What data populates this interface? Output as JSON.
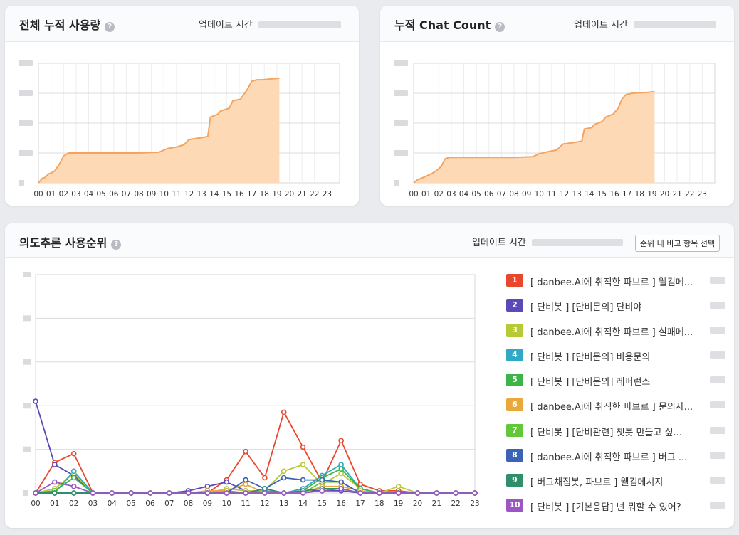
{
  "cards": {
    "total": {
      "title": "전체 누적 사용량",
      "update_label": "업데이트 시간"
    },
    "chat": {
      "title": "누적 Chat Count",
      "update_label": "업데이트 시간"
    },
    "intent": {
      "title": "의도추론 사용순위",
      "update_label": "업데이트 시간",
      "compare_button": "순위 내 비교 항목 선택"
    }
  },
  "chart_data": [
    {
      "type": "area",
      "color": "#f4a460",
      "fill": "#fdd9b5",
      "x": [
        "00",
        "01",
        "02",
        "03",
        "04",
        "05",
        "06",
        "07",
        "08",
        "09",
        "10",
        "11",
        "12",
        "13",
        "14",
        "15",
        "16",
        "17",
        "18",
        "19",
        "20",
        "21",
        "22",
        "23"
      ],
      "ylim": [
        0,
        8
      ],
      "series_points": [
        [
          0,
          0
        ],
        [
          0.3,
          0.3
        ],
        [
          0.5,
          0.35
        ],
        [
          0.8,
          0.6
        ],
        [
          1.0,
          0.65
        ],
        [
          1.3,
          0.8
        ],
        [
          1.7,
          1.3
        ],
        [
          2.0,
          1.8
        ],
        [
          2.4,
          2.0
        ],
        [
          5,
          2.0
        ],
        [
          8,
          2.0
        ],
        [
          9.6,
          2.05
        ],
        [
          10.3,
          2.3
        ],
        [
          11.0,
          2.4
        ],
        [
          11.6,
          2.55
        ],
        [
          12.0,
          2.9
        ],
        [
          12.8,
          3.0
        ],
        [
          13.5,
          3.1
        ],
        [
          13.7,
          4.4
        ],
        [
          14.3,
          4.6
        ],
        [
          14.5,
          4.8
        ],
        [
          15.2,
          5.0
        ],
        [
          15.5,
          5.5
        ],
        [
          16.1,
          5.6
        ],
        [
          16.6,
          6.2
        ],
        [
          16.8,
          6.5
        ],
        [
          17.0,
          6.8
        ],
        [
          17.4,
          6.9
        ],
        [
          17.8,
          6.9
        ],
        [
          18.5,
          6.95
        ],
        [
          19.2,
          7.0
        ]
      ]
    },
    {
      "type": "area",
      "color": "#f4a460",
      "fill": "#fdd9b5",
      "x": [
        "00",
        "01",
        "02",
        "03",
        "04",
        "05",
        "06",
        "07",
        "08",
        "09",
        "10",
        "11",
        "12",
        "13",
        "14",
        "15",
        "16",
        "17",
        "18",
        "19",
        "20",
        "21",
        "22",
        "23"
      ],
      "ylim": [
        0,
        8
      ],
      "series_points": [
        [
          0,
          0
        ],
        [
          0.3,
          0.2
        ],
        [
          0.6,
          0.3
        ],
        [
          1.0,
          0.45
        ],
        [
          1.4,
          0.6
        ],
        [
          1.8,
          0.8
        ],
        [
          2.2,
          1.1
        ],
        [
          2.5,
          1.6
        ],
        [
          2.8,
          1.7
        ],
        [
          5,
          1.7
        ],
        [
          8,
          1.7
        ],
        [
          9.5,
          1.75
        ],
        [
          10.0,
          1.95
        ],
        [
          10.8,
          2.1
        ],
        [
          11.4,
          2.2
        ],
        [
          11.9,
          2.6
        ],
        [
          12.8,
          2.7
        ],
        [
          13.4,
          2.8
        ],
        [
          13.6,
          3.6
        ],
        [
          14.2,
          3.7
        ],
        [
          14.4,
          3.9
        ],
        [
          15.0,
          4.1
        ],
        [
          15.3,
          4.4
        ],
        [
          15.9,
          4.6
        ],
        [
          16.3,
          5.0
        ],
        [
          16.6,
          5.6
        ],
        [
          16.9,
          5.9
        ],
        [
          17.4,
          6.0
        ],
        [
          18.5,
          6.05
        ],
        [
          19.2,
          6.1
        ]
      ]
    },
    {
      "type": "line",
      "x": [
        "00",
        "01",
        "02",
        "03",
        "04",
        "05",
        "06",
        "07",
        "08",
        "09",
        "10",
        "11",
        "12",
        "13",
        "14",
        "15",
        "16",
        "17",
        "18",
        "19",
        "20",
        "21",
        "22",
        "23"
      ],
      "ylim": [
        0,
        100
      ],
      "series": [
        {
          "rank": "1",
          "label": "[ danbee.Ai에 취직한 파브르 ] 웰컴메...",
          "color": "#e8472e",
          "values": [
            0,
            14,
            18,
            0,
            0,
            0,
            0,
            0,
            0,
            0,
            6,
            19,
            7,
            37,
            21,
            5,
            24,
            4,
            1,
            1,
            0,
            0,
            0,
            0
          ]
        },
        {
          "rank": "2",
          "label": "[ 단비봇 ] [단비문의] 단비야",
          "color": "#5b49b8",
          "values": [
            42,
            13,
            8,
            0,
            0,
            0,
            0,
            0,
            1,
            3,
            5,
            1,
            1,
            0,
            1,
            1,
            1,
            0,
            0,
            0,
            0,
            0,
            0,
            0
          ]
        },
        {
          "rank": "3",
          "label": "[ danbee.Ai에 취직한 파브르 ] 실패메...",
          "color": "#b9c934",
          "values": [
            0,
            2,
            9,
            0,
            0,
            0,
            0,
            0,
            0,
            0,
            2,
            1,
            1,
            10,
            13,
            4,
            9,
            2,
            0,
            3,
            0,
            0,
            0,
            0
          ]
        },
        {
          "rank": "4",
          "label": "[ 단비봇 ] [단비문의] 비용문의",
          "color": "#2fa9c4",
          "values": [
            0,
            0,
            10,
            0,
            0,
            0,
            0,
            0,
            0,
            0,
            1,
            0,
            1,
            0,
            2,
            8,
            13,
            2,
            0,
            0,
            0,
            0,
            0,
            0
          ]
        },
        {
          "rank": "5",
          "label": "[ 단비봇 ] [단비문의] 레퍼런스",
          "color": "#3bb54a",
          "values": [
            0,
            1,
            7,
            0,
            0,
            0,
            0,
            0,
            0,
            0,
            0,
            0,
            0,
            0,
            1,
            7,
            11,
            2,
            0,
            0,
            0,
            0,
            0,
            0
          ]
        },
        {
          "rank": "6",
          "label": "[ danbee.Ai에 취직한 파브르 ] 문의사...",
          "color": "#e8a83a",
          "values": [
            0,
            0,
            0,
            0,
            0,
            0,
            0,
            0,
            0,
            1,
            1,
            4,
            0,
            0,
            0,
            3,
            3,
            1,
            0,
            0,
            0,
            0,
            0,
            0
          ]
        },
        {
          "rank": "7",
          "label": "[ 단비봇 ] [단비관련] 챗봇 만들고 싶...",
          "color": "#62c837",
          "values": [
            0,
            0,
            0,
            0,
            0,
            0,
            0,
            0,
            0,
            0,
            0,
            0,
            0,
            0,
            0,
            5,
            5,
            0,
            0,
            0,
            0,
            0,
            0,
            0
          ]
        },
        {
          "rank": "8",
          "label": "[ danbee.Ai에 취직한 파브르 ] 버그 ...",
          "color": "#3a63b5",
          "values": [
            0,
            0,
            0,
            0,
            0,
            0,
            0,
            0,
            0,
            0,
            0,
            6,
            2,
            7,
            6,
            6,
            5,
            0,
            0,
            0,
            0,
            0,
            0,
            0
          ]
        },
        {
          "rank": "9",
          "label": "[ 버그채집봇, 파브르 ] 웰컴메시지",
          "color": "#2e8f6a",
          "values": [
            0,
            0,
            0,
            0,
            0,
            0,
            0,
            0,
            0,
            0,
            0,
            0,
            2,
            0,
            1,
            2,
            2,
            0,
            0,
            0,
            0,
            0,
            0,
            0
          ]
        },
        {
          "rank": "10",
          "label": "[ 단비봇 ] [기본응답] 넌 뭐할 수 있어?",
          "color": "#9c56c4",
          "values": [
            0,
            5,
            3,
            0,
            0,
            0,
            0,
            0,
            0,
            0,
            0,
            0,
            0,
            0,
            0,
            1,
            2,
            0,
            0,
            0,
            0,
            0,
            0,
            0
          ]
        }
      ]
    }
  ]
}
